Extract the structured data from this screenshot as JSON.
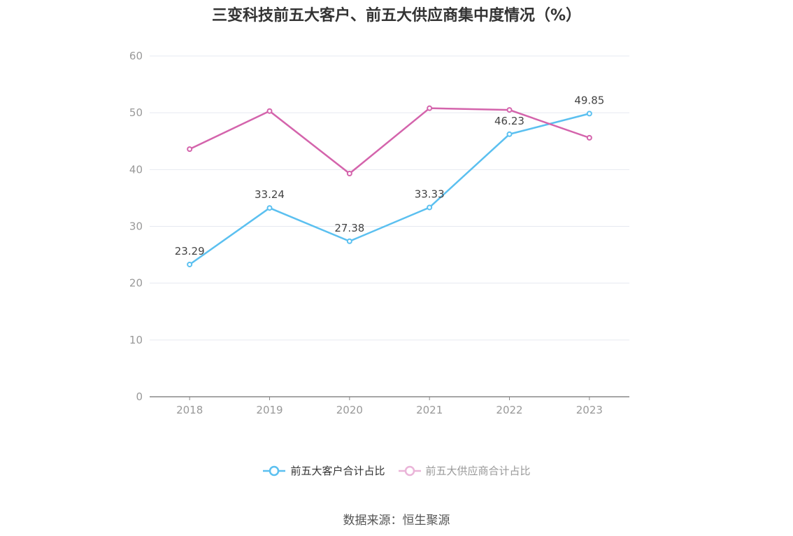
{
  "title": "三变科技前五大客户、前五大供应商集中度情况（%）",
  "source": "数据来源：恒生聚源",
  "colors": {
    "customer": "#5bc0f0",
    "supplier": "#d464ac",
    "grid": "#e6e9f0",
    "axis": "#888888",
    "tick": "#999999"
  },
  "chart_data": {
    "type": "line",
    "x": [
      "2018",
      "2019",
      "2020",
      "2021",
      "2022",
      "2023"
    ],
    "ylim": [
      0,
      60
    ],
    "yticks": [
      "0",
      "10",
      "20",
      "30",
      "40",
      "50",
      "60"
    ],
    "grid": true,
    "legend_position": "bottom-center",
    "series": [
      {
        "name": "前五大客户合计占比",
        "values": [
          23.29,
          33.24,
          27.38,
          33.33,
          46.23,
          49.85
        ],
        "labels": [
          "23.29",
          "33.24",
          "27.38",
          "33.33",
          "46.23",
          "49.85"
        ],
        "show_labels": true
      },
      {
        "name": "前五大供应商合计占比",
        "values": [
          43.6,
          50.3,
          39.3,
          50.8,
          50.5,
          45.6
        ],
        "show_labels": false
      }
    ]
  }
}
